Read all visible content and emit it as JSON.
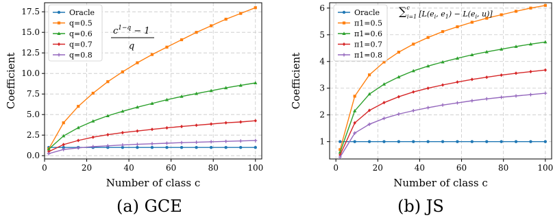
{
  "chart_data": [
    {
      "type": "line",
      "caption": "(a) GCE",
      "xlabel": "Number of class c",
      "ylabel": "Coefficient",
      "xlim": [
        0,
        103
      ],
      "ylim": [
        -0.4,
        18.6
      ],
      "xticks": [
        0,
        20,
        40,
        60,
        80,
        100
      ],
      "yticks": [
        0.0,
        2.5,
        5.0,
        7.5,
        10.0,
        12.5,
        15.0,
        17.5
      ],
      "ytick_decimals": 1,
      "grid": true,
      "legend_position": "top-left",
      "annotation": [
        "c",
        "1−q",
        "− 1",
        "q"
      ],
      "x": [
        2,
        9,
        16,
        23,
        30,
        37,
        44,
        51,
        58,
        65,
        72,
        79,
        86,
        93,
        100
      ],
      "series": [
        {
          "name": "Oracle",
          "color": "#1f77b4",
          "marker": "circle",
          "values": [
            1,
            1,
            1,
            1,
            1,
            1,
            1,
            1,
            1,
            1,
            1,
            1,
            1,
            1,
            1
          ]
        },
        {
          "name": "q=0.5",
          "color": "#ff7f0e",
          "marker": "square",
          "values": [
            0.83,
            4.0,
            6.0,
            7.6,
            9.0,
            10.2,
            11.3,
            12.3,
            13.2,
            14.1,
            15.0,
            15.8,
            16.6,
            17.3,
            18.0
          ]
        },
        {
          "name": "q=0.6",
          "color": "#2ca02c",
          "marker": "triangle",
          "values": [
            0.8,
            2.4,
            3.4,
            4.2,
            4.85,
            5.4,
            5.9,
            6.35,
            6.8,
            7.2,
            7.55,
            7.9,
            8.25,
            8.55,
            8.85
          ]
        },
        {
          "name": "q=0.7",
          "color": "#d62728",
          "marker": "diamond",
          "values": [
            0.5,
            1.35,
            1.85,
            2.25,
            2.55,
            2.8,
            3.0,
            3.2,
            3.38,
            3.55,
            3.7,
            3.85,
            4.0,
            4.1,
            4.25
          ]
        },
        {
          "name": "q=0.8",
          "color": "#9467bd",
          "marker": "plus",
          "values": [
            0.25,
            0.75,
            0.95,
            1.1,
            1.2,
            1.3,
            1.38,
            1.45,
            1.52,
            1.58,
            1.63,
            1.69,
            1.74,
            1.79,
            1.84
          ]
        }
      ]
    },
    {
      "type": "line",
      "caption": "(b) JS",
      "xlabel": "Number of class c",
      "ylabel": "Coefficient",
      "xlim": [
        -3,
        103
      ],
      "ylim": [
        0.35,
        6.2
      ],
      "xticks": [
        0,
        20,
        40,
        60,
        80,
        100
      ],
      "yticks": [
        1,
        2,
        3,
        4,
        5,
        6
      ],
      "ytick_decimals": 0,
      "grid": true,
      "legend_position": "top-left",
      "annotation": [
        "∑",
        "c",
        "i=1",
        "[L(e",
        "i",
        ", e",
        "1",
        ") − L(e",
        "i",
        ", u)]"
      ],
      "x": [
        2,
        9,
        16,
        23,
        30,
        37,
        44,
        51,
        58,
        65,
        72,
        79,
        86,
        93,
        100
      ],
      "series": [
        {
          "name": "Oracle",
          "color": "#1f77b4",
          "marker": "circle",
          "values": [
            1,
            1,
            1,
            1,
            1,
            1,
            1,
            1,
            1,
            1,
            1,
            1,
            1,
            1,
            1
          ]
        },
        {
          "name": "π1=0.5",
          "color": "#ff7f0e",
          "marker": "square",
          "values": [
            0.7,
            2.7,
            3.5,
            3.98,
            4.35,
            4.65,
            4.9,
            5.12,
            5.3,
            5.47,
            5.62,
            5.75,
            5.88,
            6.0,
            6.1
          ]
        },
        {
          "name": "π1=0.6",
          "color": "#2ca02c",
          "marker": "triangle",
          "values": [
            0.6,
            2.15,
            2.78,
            3.15,
            3.42,
            3.65,
            3.83,
            3.98,
            4.12,
            4.25,
            4.36,
            4.46,
            4.56,
            4.65,
            4.73
          ]
        },
        {
          "name": "π1=0.7",
          "color": "#d62728",
          "marker": "diamond",
          "values": [
            0.5,
            1.7,
            2.17,
            2.46,
            2.68,
            2.86,
            3.0,
            3.12,
            3.23,
            3.33,
            3.41,
            3.49,
            3.56,
            3.62,
            3.68
          ]
        },
        {
          "name": "π1=0.8",
          "color": "#9467bd",
          "marker": "plus",
          "values": [
            0.42,
            1.32,
            1.65,
            1.87,
            2.03,
            2.16,
            2.27,
            2.37,
            2.45,
            2.53,
            2.6,
            2.66,
            2.71,
            2.76,
            2.81
          ]
        }
      ]
    }
  ]
}
